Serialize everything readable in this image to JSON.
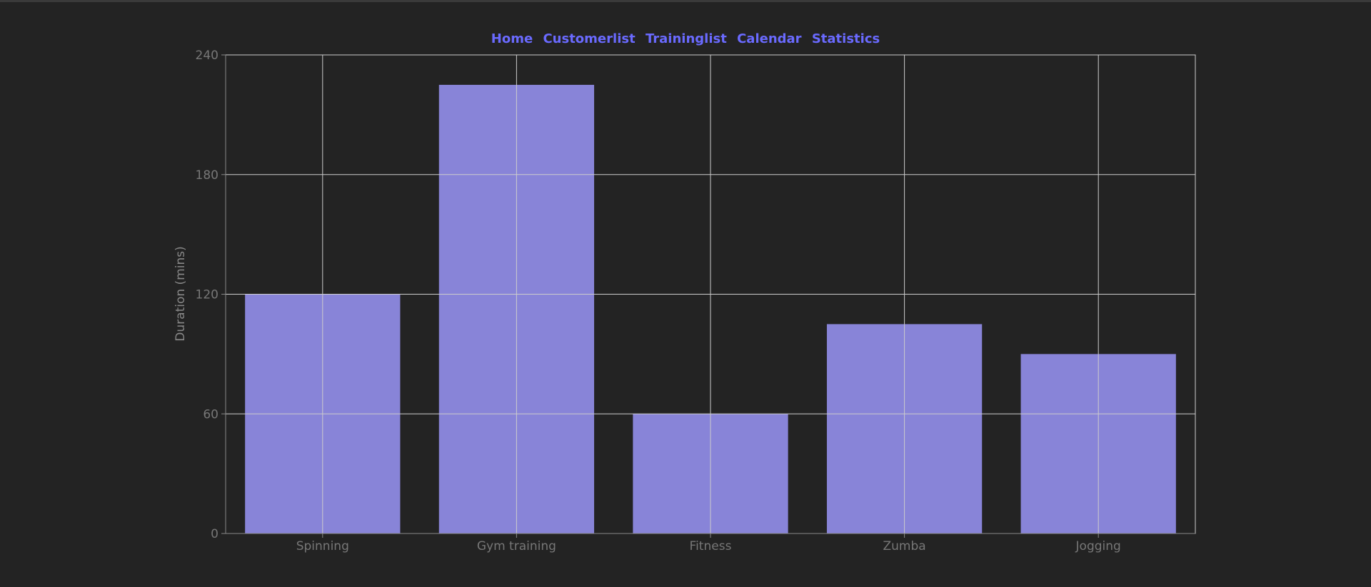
{
  "nav": {
    "items": [
      {
        "label": "Home"
      },
      {
        "label": "Customerlist"
      },
      {
        "label": "Traininglist"
      },
      {
        "label": "Calendar"
      },
      {
        "label": "Statistics"
      }
    ]
  },
  "colors": {
    "background": "#232323",
    "nav_link": "#6a6aff",
    "bar_fill": "#8884d8",
    "grid": "#cccccc",
    "axis_text": "#777777"
  },
  "chart_data": {
    "type": "bar",
    "categories": [
      "Spinning",
      "Gym training",
      "Fitness",
      "Zumba",
      "Jogging"
    ],
    "values": [
      120,
      225,
      60,
      105,
      90
    ],
    "title": "",
    "xlabel": "",
    "ylabel": "Duration (mins)",
    "ylim": [
      0,
      240
    ],
    "yticks": [
      0,
      60,
      120,
      180,
      240
    ],
    "grid": true,
    "legend": "none"
  }
}
